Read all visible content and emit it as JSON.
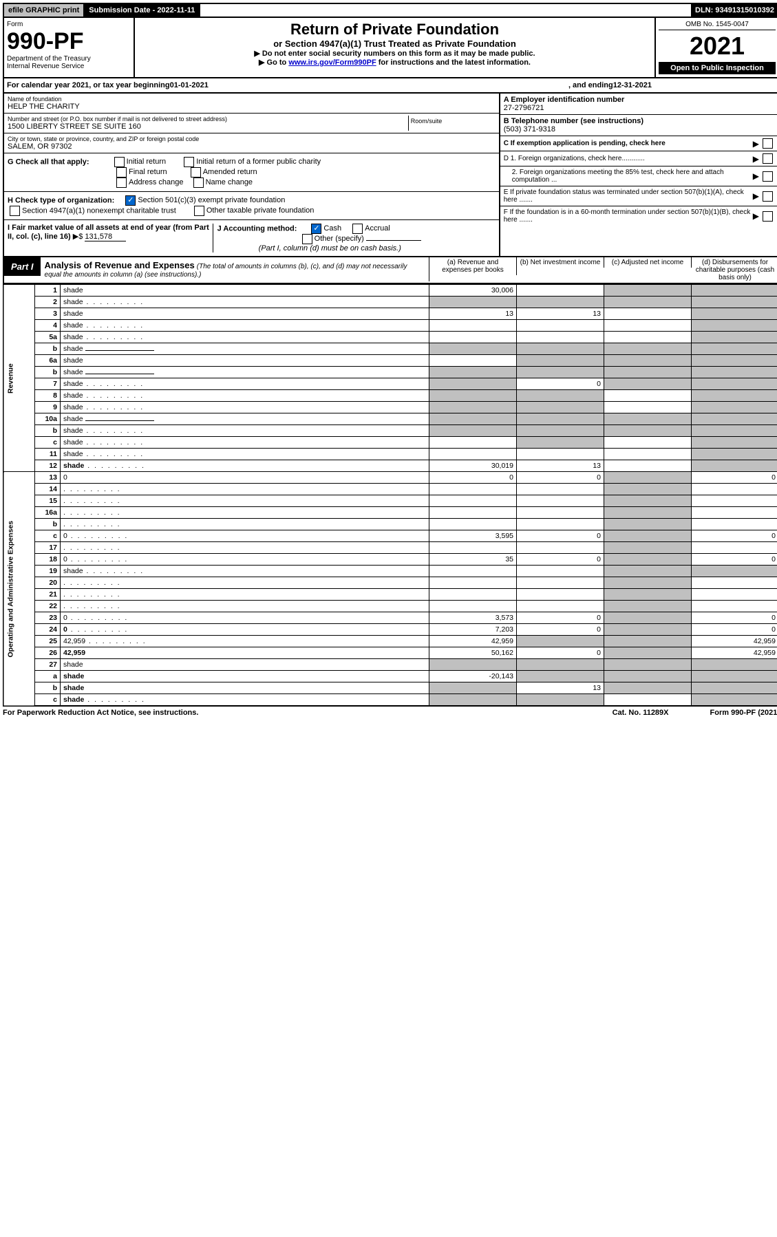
{
  "top": {
    "efile": "efile GRAPHIC print",
    "submission_label": "Submission Date - 2022-11-11",
    "dln": "DLN: 93491315010392"
  },
  "header": {
    "form_word": "Form",
    "form_number": "990-PF",
    "dept": "Department of the Treasury",
    "irs": "Internal Revenue Service",
    "title": "Return of Private Foundation",
    "subtitle": "or Section 4947(a)(1) Trust Treated as Private Foundation",
    "instr1": "▶ Do not enter social security numbers on this form as it may be made public.",
    "instr2_pre": "▶ Go to ",
    "instr2_link": "www.irs.gov/Form990PF",
    "instr2_post": " for instructions and the latest information.",
    "omb": "OMB No. 1545-0047",
    "year": "2021",
    "open": "Open to Public Inspection"
  },
  "calyear": {
    "prefix": "For calendar year 2021, or tax year beginning ",
    "begin": "01-01-2021",
    "mid": " , and ending ",
    "end": "12-31-2021"
  },
  "entity": {
    "name_label": "Name of foundation",
    "name": "HELP THE CHARITY",
    "addr_label": "Number and street (or P.O. box number if mail is not delivered to street address)",
    "room_label": "Room/suite",
    "addr": "1500 LIBERTY STREET SE SUITE 160",
    "city_label": "City or town, state or province, country, and ZIP or foreign postal code",
    "city": "SALEM, OR  97302",
    "ein_label": "A Employer identification number",
    "ein": "27-2796721",
    "phone_label": "B Telephone number (see instructions)",
    "phone": "(503) 371-9318",
    "c_label": "C If exemption application is pending, check here",
    "d1": "D 1. Foreign organizations, check here............",
    "d2": "2. Foreign organizations meeting the 85% test, check here and attach computation ...",
    "e": "E  If private foundation status was terminated under section 507(b)(1)(A), check here .......",
    "f": "F  If the foundation is in a 60-month termination under section 507(b)(1)(B), check here .......",
    "g_label": "G Check all that apply:",
    "g_opts": [
      "Initial return",
      "Initial return of a former public charity",
      "Final return",
      "Amended return",
      "Address change",
      "Name change"
    ],
    "h_label": "H Check type of organization:",
    "h1": "Section 501(c)(3) exempt private foundation",
    "h2": "Section 4947(a)(1) nonexempt charitable trust",
    "h3": "Other taxable private foundation",
    "i_label": "I Fair market value of all assets at end of year (from Part II, col. (c), line 16)",
    "i_val": "131,578",
    "j_label": "J Accounting method:",
    "j_cash": "Cash",
    "j_accrual": "Accrual",
    "j_other": "Other (specify)",
    "j_note": "(Part I, column (d) must be on cash basis.)"
  },
  "part1": {
    "label": "Part I",
    "title": "Analysis of Revenue and Expenses",
    "note": " (The total of amounts in columns (b), (c), and (d) may not necessarily equal the amounts in column (a) (see instructions).)",
    "cols": {
      "a": "(a)   Revenue and expenses per books",
      "b": "(b)   Net investment income",
      "c": "(c)   Adjusted net income",
      "d": "(d)   Disbursements for charitable purposes (cash basis only)"
    }
  },
  "sections": {
    "revenue": "Revenue",
    "opadmin": "Operating and Administrative Expenses"
  },
  "rows": [
    {
      "n": "1",
      "d": "shade",
      "a": "30,006",
      "b": "",
      "c": "shade"
    },
    {
      "n": "2",
      "d": "shade",
      "a": "shade",
      "b": "shade",
      "c": "shade",
      "dots": true
    },
    {
      "n": "3",
      "d": "shade",
      "a": "13",
      "b": "13",
      "c": ""
    },
    {
      "n": "4",
      "d": "shade",
      "a": "",
      "b": "",
      "c": "",
      "dots": true
    },
    {
      "n": "5a",
      "d": "shade",
      "a": "",
      "b": "",
      "c": "",
      "dots": true
    },
    {
      "n": "b",
      "d": "shade",
      "a": "shade",
      "b": "shade",
      "c": "shade",
      "inline_blank": true
    },
    {
      "n": "6a",
      "d": "shade",
      "a": "",
      "b": "shade",
      "c": "shade"
    },
    {
      "n": "b",
      "d": "shade",
      "a": "shade",
      "b": "shade",
      "c": "shade",
      "inline_blank": true
    },
    {
      "n": "7",
      "d": "shade",
      "a": "shade",
      "b": "0",
      "c": "shade",
      "dots": true
    },
    {
      "n": "8",
      "d": "shade",
      "a": "shade",
      "b": "shade",
      "c": "",
      "dots": true
    },
    {
      "n": "9",
      "d": "shade",
      "a": "shade",
      "b": "shade",
      "c": "",
      "dots": true
    },
    {
      "n": "10a",
      "d": "shade",
      "a": "shade",
      "b": "shade",
      "c": "shade",
      "inline_blank": true
    },
    {
      "n": "b",
      "d": "shade",
      "a": "shade",
      "b": "shade",
      "c": "shade",
      "inline_blank": true,
      "dots": true
    },
    {
      "n": "c",
      "d": "shade",
      "a": "",
      "b": "shade",
      "c": "",
      "dots": true
    },
    {
      "n": "11",
      "d": "shade",
      "a": "",
      "b": "",
      "c": "",
      "dots": true
    },
    {
      "n": "12",
      "d": "shade",
      "a": "30,019",
      "b": "13",
      "c": "",
      "bold": true,
      "dots": true
    }
  ],
  "exp_rows": [
    {
      "n": "13",
      "d": "0",
      "a": "0",
      "b": "0",
      "c": "shade"
    },
    {
      "n": "14",
      "d": "",
      "a": "",
      "b": "",
      "c": "shade",
      "dots": true
    },
    {
      "n": "15",
      "d": "",
      "a": "",
      "b": "",
      "c": "shade",
      "dots": true
    },
    {
      "n": "16a",
      "d": "",
      "a": "",
      "b": "",
      "c": "shade",
      "dots": true
    },
    {
      "n": "b",
      "d": "",
      "a": "",
      "b": "",
      "c": "shade",
      "dots": true
    },
    {
      "n": "c",
      "d": "0",
      "a": "3,595",
      "b": "0",
      "c": "shade",
      "dots": true
    },
    {
      "n": "17",
      "d": "",
      "a": "",
      "b": "",
      "c": "shade",
      "dots": true
    },
    {
      "n": "18",
      "d": "0",
      "a": "35",
      "b": "0",
      "c": "shade",
      "dots": true
    },
    {
      "n": "19",
      "d": "shade",
      "a": "",
      "b": "",
      "c": "shade",
      "dots": true
    },
    {
      "n": "20",
      "d": "",
      "a": "",
      "b": "",
      "c": "shade",
      "dots": true
    },
    {
      "n": "21",
      "d": "",
      "a": "",
      "b": "",
      "c": "shade",
      "dots": true
    },
    {
      "n": "22",
      "d": "",
      "a": "",
      "b": "",
      "c": "shade",
      "dots": true
    },
    {
      "n": "23",
      "d": "0",
      "a": "3,573",
      "b": "0",
      "c": "shade",
      "dots": true
    },
    {
      "n": "24",
      "d": "0",
      "a": "7,203",
      "b": "0",
      "c": "shade",
      "bold": true,
      "dots": true
    },
    {
      "n": "25",
      "d": "42,959",
      "a": "42,959",
      "b": "shade",
      "c": "shade",
      "dots": true
    },
    {
      "n": "26",
      "d": "42,959",
      "a": "50,162",
      "b": "0",
      "c": "shade",
      "bold": true
    }
  ],
  "net_rows": [
    {
      "n": "27",
      "d": "shade",
      "a": "shade",
      "b": "shade",
      "c": "shade"
    },
    {
      "n": "a",
      "d": "shade",
      "a": "-20,143",
      "b": "shade",
      "c": "shade",
      "bold": true
    },
    {
      "n": "b",
      "d": "shade",
      "a": "shade",
      "b": "13",
      "c": "shade",
      "bold": true
    },
    {
      "n": "c",
      "d": "shade",
      "a": "shade",
      "b": "shade",
      "c": "",
      "bold": true,
      "dots": true
    }
  ],
  "footer": {
    "left": "For Paperwork Reduction Act Notice, see instructions.",
    "mid": "Cat. No. 11289X",
    "right": "Form 990-PF (2021)"
  },
  "colors": {
    "shade": "#c0c0c0",
    "black": "#000000",
    "link": "#0000cc",
    "checkblue": "#0066cc"
  }
}
